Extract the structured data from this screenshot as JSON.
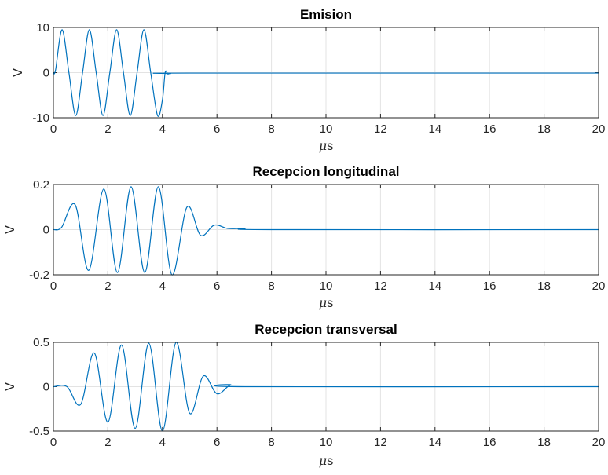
{
  "chart_data": [
    {
      "type": "line",
      "title": "Emision",
      "xlabel_mu": "μ",
      "xlabel_unit": "s",
      "ylabel": "V",
      "xlim": [
        0,
        20
      ],
      "ylim": [
        -10,
        10
      ],
      "xticks": [
        "0",
        "2",
        "4",
        "6",
        "8",
        "10",
        "12",
        "14",
        "16",
        "18",
        "20"
      ],
      "yticks": [
        "10",
        "0",
        "-10"
      ],
      "grid": true,
      "color": "#0072BD",
      "series": [
        {
          "x": [
            0,
            0.08,
            0.32,
            0.57,
            0.82,
            1.07,
            1.32,
            1.57,
            1.82,
            2.07,
            2.32,
            2.57,
            2.82,
            3.07,
            3.32,
            3.57,
            3.82,
            4.0,
            4.1,
            4.2,
            4.3,
            5,
            20
          ],
          "y": [
            0,
            0.6,
            9.5,
            0,
            -9.5,
            0,
            9.5,
            0,
            -9.5,
            0,
            9.5,
            0,
            -9.5,
            0,
            9.5,
            0,
            -9.5,
            -6.0,
            0,
            -0.3,
            -0.2,
            -0.1,
            -0.1
          ]
        }
      ]
    },
    {
      "type": "line",
      "title": "Recepcion longitudinal",
      "xlabel_mu": "μ",
      "xlabel_unit": "s",
      "ylabel": "V",
      "xlim": [
        0,
        20
      ],
      "ylim": [
        -0.2,
        0.2
      ],
      "xticks": [
        "0",
        "2",
        "4",
        "6",
        "8",
        "10",
        "12",
        "14",
        "16",
        "18",
        "20"
      ],
      "yticks": [
        "0.2",
        "0",
        "-0.2"
      ],
      "grid": true,
      "color": "#0072BD",
      "series": [
        {
          "x": [
            0,
            0.3,
            0.8,
            1.3,
            1.85,
            2.35,
            2.85,
            3.35,
            3.85,
            4.35,
            4.9,
            5.4,
            5.9,
            6.4,
            7,
            8,
            20
          ],
          "y": [
            0,
            0.01,
            0.11,
            -0.18,
            0.18,
            -0.19,
            0.19,
            -0.19,
            0.19,
            -0.2,
            0.1,
            -0.025,
            0.02,
            0.005,
            0.005,
            0,
            0
          ]
        }
      ]
    },
    {
      "type": "line",
      "title": "Recepcion transversal",
      "xlabel_mu": "μ",
      "xlabel_unit": "s",
      "ylabel": "V",
      "xlim": [
        0,
        20
      ],
      "ylim": [
        -0.5,
        0.5
      ],
      "xticks": [
        "0",
        "2",
        "4",
        "6",
        "8",
        "10",
        "12",
        "14",
        "16",
        "18",
        "20"
      ],
      "yticks": [
        "0.5",
        "0",
        "-0.5"
      ],
      "grid": true,
      "color": "#0072BD",
      "series": [
        {
          "x": [
            0,
            0.5,
            1.0,
            1.5,
            2.0,
            2.5,
            3.0,
            3.5,
            4.0,
            4.5,
            5.0,
            5.5,
            6.0,
            6.5,
            7,
            20
          ],
          "y": [
            0,
            0,
            -0.2,
            0.38,
            -0.4,
            0.47,
            -0.47,
            0.49,
            -0.5,
            0.5,
            -0.3,
            0.12,
            -0.08,
            0.02,
            0,
            0
          ]
        }
      ]
    }
  ]
}
